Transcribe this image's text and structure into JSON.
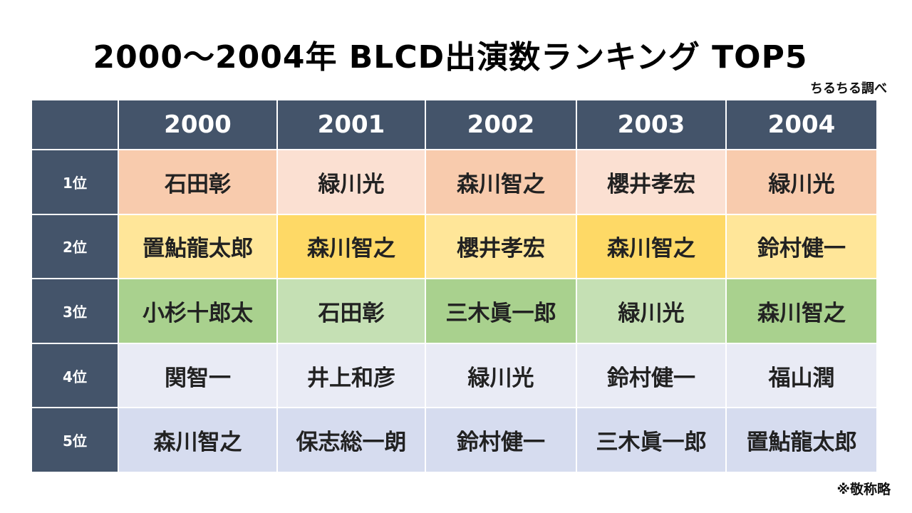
{
  "header": {
    "title": "2000〜2004年 BLCD出演数ランキング TOP5",
    "source": "ちるちる調べ"
  },
  "table": {
    "columns": [
      "2000",
      "2001",
      "2002",
      "2003",
      "2004"
    ],
    "rows": [
      {
        "label": "1位",
        "cells": [
          "石田彰",
          "緑川光",
          "森川智之",
          "櫻井孝宏",
          "緑川光"
        ]
      },
      {
        "label": "2位",
        "cells": [
          "置鮎龍太郎",
          "森川智之",
          "櫻井孝宏",
          "森川智之",
          "鈴村健一"
        ]
      },
      {
        "label": "3位",
        "cells": [
          "小杉十郎太",
          "石田彰",
          "三木眞一郎",
          "緑川光",
          "森川智之"
        ]
      },
      {
        "label": "4位",
        "cells": [
          "関智一",
          "井上和彦",
          "緑川光",
          "鈴村健一",
          "福山潤"
        ]
      },
      {
        "label": "5位",
        "cells": [
          "森川智之",
          "保志総一朗",
          "鈴村健一",
          "三木眞一郎",
          "置鮎龍太郎"
        ]
      }
    ]
  },
  "footnote": "※敬称略"
}
